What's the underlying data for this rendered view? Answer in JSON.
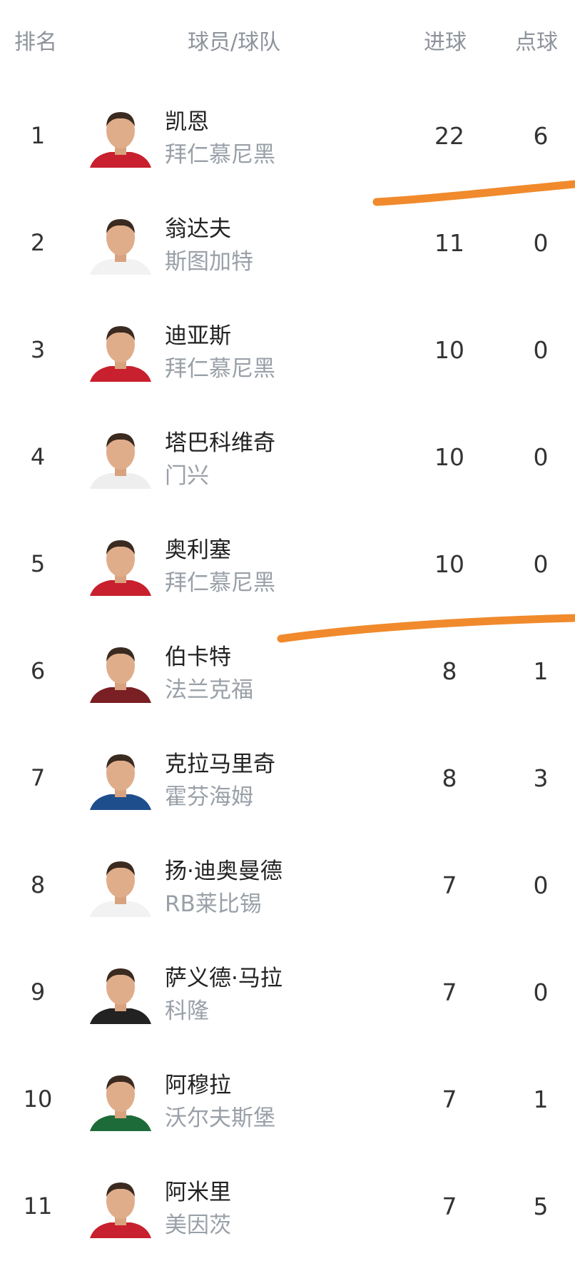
{
  "header": {
    "rank": "排名",
    "player_team": "球员/球队",
    "goals": "进球",
    "penalties": "点球"
  },
  "rows": [
    {
      "rank": "1",
      "name": "凯恩",
      "team": "拜仁慕尼黑",
      "goals": "22",
      "penalties": "6",
      "jersey": "#c8202e"
    },
    {
      "rank": "2",
      "name": "翁达夫",
      "team": "斯图加特",
      "goals": "11",
      "penalties": "0",
      "jersey": "#f2f2f2"
    },
    {
      "rank": "3",
      "name": "迪亚斯",
      "team": "拜仁慕尼黑",
      "goals": "10",
      "penalties": "0",
      "jersey": "#c8202e"
    },
    {
      "rank": "4",
      "name": "塔巴科维奇",
      "team": "门兴",
      "goals": "10",
      "penalties": "0",
      "jersey": "#eeeeee"
    },
    {
      "rank": "5",
      "name": "奥利塞",
      "team": "拜仁慕尼黑",
      "goals": "10",
      "penalties": "0",
      "jersey": "#c8202e"
    },
    {
      "rank": "6",
      "name": "伯卡特",
      "team": "法兰克福",
      "goals": "8",
      "penalties": "1",
      "jersey": "#7a1f24"
    },
    {
      "rank": "7",
      "name": "克拉马里奇",
      "team": "霍芬海姆",
      "goals": "8",
      "penalties": "3",
      "jersey": "#1f4e8c"
    },
    {
      "rank": "8",
      "name": "扬·迪奥曼德",
      "team": "RB莱比锡",
      "goals": "7",
      "penalties": "0",
      "jersey": "#f2f2f2"
    },
    {
      "rank": "9",
      "name": "萨义德·马拉",
      "team": "科隆",
      "goals": "7",
      "penalties": "0",
      "jersey": "#222222"
    },
    {
      "rank": "10",
      "name": "阿穆拉",
      "team": "沃尔夫斯堡",
      "goals": "7",
      "penalties": "1",
      "jersey": "#1e6b3a"
    },
    {
      "rank": "11",
      "name": "阿米里",
      "team": "美因茨",
      "goals": "7",
      "penalties": "5",
      "jersey": "#c8202e"
    }
  ],
  "colors": {
    "annotation_stroke": "#f08a2c",
    "header_text": "#8e939b",
    "team_text": "#9aa0a8"
  }
}
